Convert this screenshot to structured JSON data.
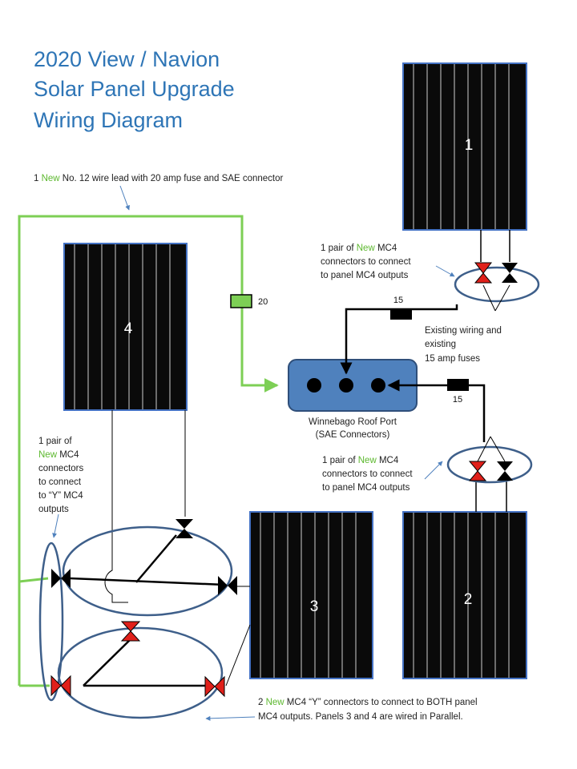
{
  "title": {
    "line1": "2020 View / Navion",
    "line2": "Solar Panel Upgrade",
    "line3": "Wiring Diagram"
  },
  "panels": [
    {
      "label": "1"
    },
    {
      "label": "2"
    },
    {
      "label": "3"
    },
    {
      "label": "4"
    }
  ],
  "roof_port": {
    "label1": "Winnebago Roof Port",
    "label2": "(SAE Connectors)"
  },
  "fuses": {
    "new_fuse": "20",
    "existing_top": "15",
    "existing_bottom": "15"
  },
  "notes": {
    "wire_lead": {
      "pre": "1 ",
      "new": "New",
      "post": " No. 12 wire lead with 20 amp fuse and SAE connector"
    },
    "mc4_top": {
      "line1_pre": "1 pair of ",
      "line1_new": "New",
      "line1_post": " MC4",
      "line2": "connectors to connect",
      "line3": "to panel MC4 outputs"
    },
    "existing_wiring": {
      "line1": "Existing wiring and",
      "line2": "existing",
      "line3": "15  amp fuses"
    },
    "mc4_bottom": {
      "line1_pre": "1 pair of ",
      "line1_new": "New",
      "line1_post": " MC4",
      "line2": "connectors to connect",
      "line3": "to panel MC4 outputs"
    },
    "mc4_left": {
      "line1": "1 pair of",
      "line2_new": "New",
      "line2_post": " MC4",
      "line3": "connectors",
      "line4": "to connect",
      "line5": "to “Y” MC4",
      "line6": "outputs"
    },
    "y_connectors": {
      "line1_pre": "2 ",
      "line1_new": "New",
      "line1_post": " MC4 “Y” connectors to connect to BOTH panel",
      "line2": "MC4 outputs.  Panels 3 and 4 are wired in Parallel."
    }
  },
  "colors": {
    "title": "#2E75B6",
    "new_highlight": "#5CB82E",
    "panel_fill": "#0A0A0A",
    "panel_border": "#4472C4",
    "port_fill": "#4F81BD",
    "ellipse_stroke": "#3E5F8A",
    "connector_red": "#E0201A",
    "wire_green": "#7DCF55"
  }
}
